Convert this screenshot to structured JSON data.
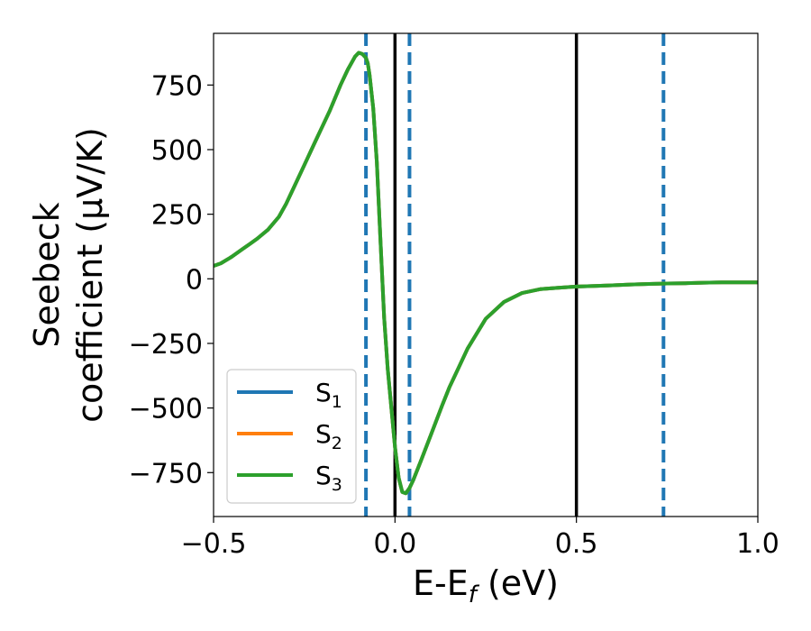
{
  "chart_data": {
    "type": "line",
    "xlabel": "E-E",
    "xlabel_subscript": "f",
    "xlabel_unit": " (eV)",
    "ylabel_line1": "Seebeck",
    "ylabel_line2": "coefficient  (μV/K)",
    "xlim": [
      -0.5,
      1.0
    ],
    "ylim": [
      -920,
      950
    ],
    "xticks": [
      -0.5,
      0.0,
      0.5,
      1.0
    ],
    "xtick_labels": [
      "−0.5",
      "0.0",
      "0.5",
      "1.0"
    ],
    "yticks": [
      -750,
      -500,
      -250,
      0,
      250,
      500,
      750
    ],
    "ytick_labels": [
      "−750",
      "−500",
      "−250",
      "0",
      "250",
      "500",
      "750"
    ],
    "grid": false,
    "legend_position": "lower-left",
    "series": [
      {
        "name": "S",
        "subscript": "1",
        "color": "#1f77b4"
      },
      {
        "name": "S",
        "subscript": "2",
        "color": "#ff7f0e"
      },
      {
        "name": "S",
        "subscript": "3",
        "color": "#2ca02c"
      }
    ],
    "x": [
      -0.5,
      -0.48,
      -0.45,
      -0.42,
      -0.4,
      -0.38,
      -0.35,
      -0.32,
      -0.3,
      -0.28,
      -0.25,
      -0.22,
      -0.2,
      -0.18,
      -0.15,
      -0.13,
      -0.11,
      -0.1,
      -0.09,
      -0.08,
      -0.075,
      -0.07,
      -0.06,
      -0.05,
      -0.04,
      -0.03,
      -0.02,
      -0.01,
      0.0,
      0.01,
      0.02,
      0.03,
      0.04,
      0.05,
      0.07,
      0.1,
      0.13,
      0.15,
      0.2,
      0.25,
      0.3,
      0.35,
      0.4,
      0.45,
      0.5,
      0.55,
      0.6,
      0.65,
      0.7,
      0.75,
      0.8,
      0.85,
      0.9,
      0.95,
      1.0
    ],
    "y": [
      50,
      60,
      85,
      115,
      135,
      155,
      190,
      240,
      290,
      350,
      440,
      530,
      590,
      650,
      750,
      810,
      860,
      875,
      870,
      855,
      835,
      790,
      660,
      450,
      150,
      -150,
      -350,
      -500,
      -650,
      -770,
      -825,
      -830,
      -810,
      -780,
      -710,
      -600,
      -490,
      -420,
      -270,
      -155,
      -90,
      -55,
      -40,
      -35,
      -30,
      -28,
      -25,
      -22,
      -20,
      -18,
      -17,
      -15,
      -14,
      -14,
      -14
    ],
    "vlines_solid": [
      0.0,
      0.5
    ],
    "vlines_dashed": [
      -0.08,
      0.04,
      0.74
    ],
    "vline_solid_color": "#000000",
    "vline_dashed_color": "#1f77b4"
  }
}
